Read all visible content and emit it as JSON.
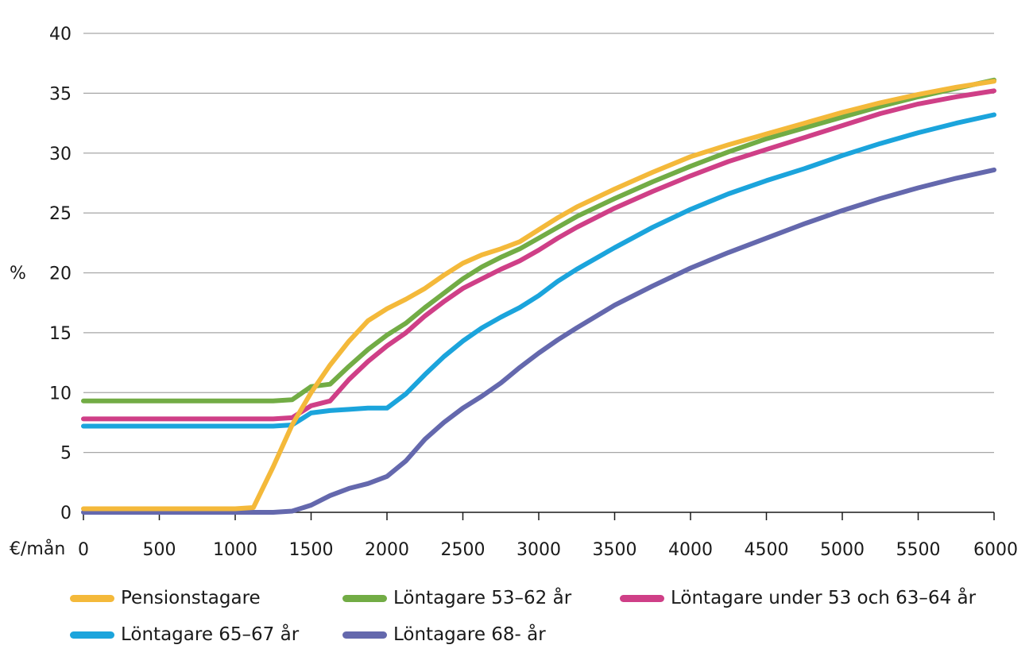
{
  "chart_data": {
    "type": "line",
    "ylabel": "%",
    "xlabel": "€/mån",
    "xlim": [
      0,
      6000
    ],
    "ylim": [
      0,
      40
    ],
    "yticks": [
      "0",
      "5",
      "10",
      "15",
      "20",
      "25",
      "30",
      "35",
      "40"
    ],
    "xticks": [
      "0",
      "500",
      "1000",
      "1500",
      "2000",
      "2500",
      "3000",
      "3500",
      "4000",
      "4500",
      "5000",
      "5500",
      "6000"
    ],
    "grid": true,
    "legend": "bottom",
    "series": [
      {
        "name": "Pensionstagare",
        "color": "#f4b93a",
        "points": [
          [
            0,
            0.3
          ],
          [
            1000,
            0.3
          ],
          [
            1120,
            0.4
          ],
          [
            1250,
            3.8
          ],
          [
            1375,
            7.3
          ],
          [
            1500,
            10.0
          ],
          [
            1625,
            12.3
          ],
          [
            1750,
            14.3
          ],
          [
            1875,
            16.0
          ],
          [
            2000,
            17.0
          ],
          [
            2125,
            17.8
          ],
          [
            2250,
            18.7
          ],
          [
            2375,
            19.8
          ],
          [
            2500,
            20.8
          ],
          [
            2625,
            21.5
          ],
          [
            2750,
            22.0
          ],
          [
            2875,
            22.6
          ],
          [
            3000,
            23.6
          ],
          [
            3125,
            24.6
          ],
          [
            3250,
            25.5
          ],
          [
            3500,
            27.0
          ],
          [
            3750,
            28.4
          ],
          [
            4000,
            29.7
          ],
          [
            4250,
            30.7
          ],
          [
            4500,
            31.6
          ],
          [
            4750,
            32.5
          ],
          [
            5000,
            33.4
          ],
          [
            5250,
            34.2
          ],
          [
            5500,
            34.9
          ],
          [
            5750,
            35.5
          ],
          [
            6000,
            36.0
          ]
        ]
      },
      {
        "name": "Löntagare 53–62 år",
        "color": "#72ac45",
        "points": [
          [
            0,
            9.3
          ],
          [
            1250,
            9.3
          ],
          [
            1375,
            9.4
          ],
          [
            1500,
            10.5
          ],
          [
            1625,
            10.7
          ],
          [
            1750,
            12.2
          ],
          [
            1875,
            13.6
          ],
          [
            2000,
            14.8
          ],
          [
            2125,
            15.8
          ],
          [
            2250,
            17.1
          ],
          [
            2375,
            18.3
          ],
          [
            2500,
            19.5
          ],
          [
            2625,
            20.5
          ],
          [
            2750,
            21.3
          ],
          [
            2875,
            22.0
          ],
          [
            3000,
            22.9
          ],
          [
            3125,
            23.8
          ],
          [
            3250,
            24.7
          ],
          [
            3500,
            26.2
          ],
          [
            3750,
            27.6
          ],
          [
            4000,
            28.9
          ],
          [
            4250,
            30.1
          ],
          [
            4500,
            31.2
          ],
          [
            4750,
            32.1
          ],
          [
            5000,
            33.0
          ],
          [
            5250,
            33.9
          ],
          [
            5500,
            34.7
          ],
          [
            5750,
            35.4
          ],
          [
            6000,
            36.1
          ]
        ]
      },
      {
        "name": "Löntagare under 53 och 63–64 år",
        "color": "#cf3f87",
        "points": [
          [
            0,
            7.8
          ],
          [
            1250,
            7.8
          ],
          [
            1375,
            7.9
          ],
          [
            1500,
            8.9
          ],
          [
            1625,
            9.3
          ],
          [
            1750,
            11.1
          ],
          [
            1875,
            12.6
          ],
          [
            2000,
            13.9
          ],
          [
            2125,
            15.0
          ],
          [
            2250,
            16.4
          ],
          [
            2375,
            17.6
          ],
          [
            2500,
            18.7
          ],
          [
            2625,
            19.5
          ],
          [
            2750,
            20.3
          ],
          [
            2875,
            21.0
          ],
          [
            3000,
            21.9
          ],
          [
            3125,
            22.9
          ],
          [
            3250,
            23.8
          ],
          [
            3500,
            25.4
          ],
          [
            3750,
            26.8
          ],
          [
            4000,
            28.1
          ],
          [
            4250,
            29.3
          ],
          [
            4500,
            30.3
          ],
          [
            4750,
            31.3
          ],
          [
            5000,
            32.3
          ],
          [
            5250,
            33.3
          ],
          [
            5500,
            34.1
          ],
          [
            5750,
            34.7
          ],
          [
            6000,
            35.2
          ]
        ]
      },
      {
        "name": "Löntagare 65–67 år",
        "color": "#1ba4dc",
        "points": [
          [
            0,
            7.2
          ],
          [
            1250,
            7.2
          ],
          [
            1375,
            7.3
          ],
          [
            1500,
            8.3
          ],
          [
            1625,
            8.5
          ],
          [
            1750,
            8.6
          ],
          [
            1875,
            8.7
          ],
          [
            2000,
            8.7
          ],
          [
            2125,
            9.9
          ],
          [
            2250,
            11.5
          ],
          [
            2375,
            13.0
          ],
          [
            2500,
            14.3
          ],
          [
            2625,
            15.4
          ],
          [
            2750,
            16.3
          ],
          [
            2875,
            17.1
          ],
          [
            3000,
            18.1
          ],
          [
            3125,
            19.3
          ],
          [
            3250,
            20.3
          ],
          [
            3500,
            22.1
          ],
          [
            3750,
            23.8
          ],
          [
            4000,
            25.3
          ],
          [
            4250,
            26.6
          ],
          [
            4500,
            27.7
          ],
          [
            4750,
            28.7
          ],
          [
            5000,
            29.8
          ],
          [
            5250,
            30.8
          ],
          [
            5500,
            31.7
          ],
          [
            5750,
            32.5
          ],
          [
            6000,
            33.2
          ]
        ]
      },
      {
        "name": "Löntagare 68- år",
        "color": "#6468ad",
        "points": [
          [
            0,
            0.0
          ],
          [
            1250,
            0.0
          ],
          [
            1375,
            0.1
          ],
          [
            1500,
            0.6
          ],
          [
            1625,
            1.4
          ],
          [
            1750,
            2.0
          ],
          [
            1875,
            2.4
          ],
          [
            2000,
            3.0
          ],
          [
            2125,
            4.3
          ],
          [
            2250,
            6.1
          ],
          [
            2375,
            7.5
          ],
          [
            2500,
            8.7
          ],
          [
            2625,
            9.7
          ],
          [
            2750,
            10.8
          ],
          [
            2875,
            12.1
          ],
          [
            3000,
            13.3
          ],
          [
            3125,
            14.4
          ],
          [
            3250,
            15.4
          ],
          [
            3500,
            17.3
          ],
          [
            3750,
            18.9
          ],
          [
            4000,
            20.4
          ],
          [
            4250,
            21.7
          ],
          [
            4500,
            22.9
          ],
          [
            4750,
            24.1
          ],
          [
            5000,
            25.2
          ],
          [
            5250,
            26.2
          ],
          [
            5500,
            27.1
          ],
          [
            5750,
            27.9
          ],
          [
            6000,
            28.6
          ]
        ]
      }
    ]
  }
}
